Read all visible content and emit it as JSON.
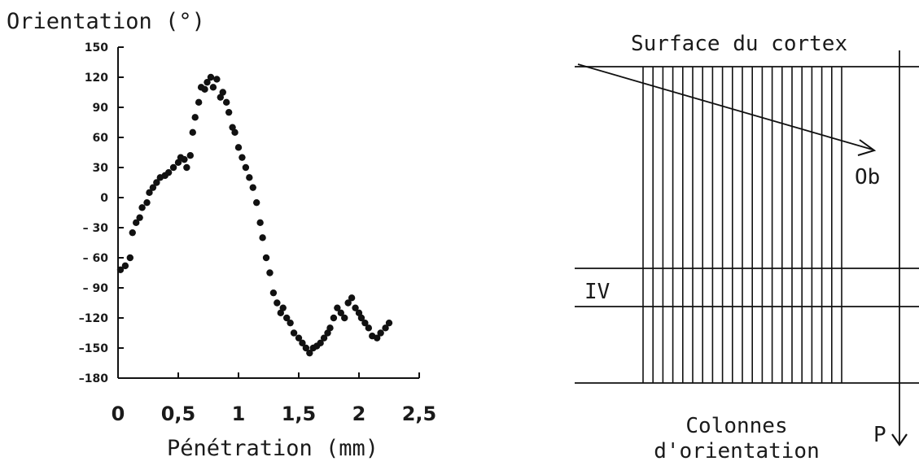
{
  "chart_data": {
    "type": "scatter",
    "ylabel": "Orientation (°)",
    "xlabel": "Pénétration (mm)",
    "xlim": [
      0,
      2.5
    ],
    "ylim": [
      -180,
      150
    ],
    "x_ticks": [
      0,
      0.5,
      1,
      1.5,
      2,
      2.5
    ],
    "x_tick_labels": [
      "0",
      "0,5",
      "1",
      "1,5",
      "2",
      "2,5"
    ],
    "y_ticks": [
      150,
      120,
      90,
      60,
      30,
      0,
      -30,
      -60,
      -90,
      -120,
      -150,
      -180
    ],
    "y_tick_labels": [
      "150",
      "120",
      "90",
      "60",
      "30",
      "0",
      "– 30",
      "– 60",
      "– 90",
      "–120",
      "–150",
      "–180"
    ],
    "grid": false,
    "marker_color": "#111111",
    "series": [
      {
        "x": [
          0.02,
          0.06,
          0.1,
          0.12,
          0.15,
          0.18,
          0.2,
          0.24,
          0.26,
          0.29,
          0.32,
          0.35,
          0.39,
          0.42,
          0.46,
          0.5,
          0.52,
          0.55,
          0.57,
          0.6,
          0.62,
          0.64,
          0.67,
          0.69,
          0.72,
          0.74,
          0.77,
          0.79,
          0.82,
          0.85,
          0.87,
          0.9,
          0.92,
          0.95,
          0.97,
          1.0,
          1.03,
          1.06,
          1.09,
          1.12,
          1.15,
          1.18,
          1.2,
          1.23,
          1.26,
          1.29,
          1.32,
          1.35,
          1.37,
          1.4,
          1.43,
          1.46,
          1.5,
          1.53,
          1.56,
          1.59,
          1.62,
          1.65,
          1.68,
          1.71,
          1.74,
          1.76,
          1.79,
          1.82,
          1.85,
          1.88,
          1.91,
          1.94,
          1.97,
          2.0,
          2.02,
          2.05,
          2.08,
          2.11,
          2.15,
          2.18,
          2.22,
          2.25
        ],
        "y": [
          -72,
          -68,
          -60,
          -35,
          -25,
          -20,
          -10,
          -5,
          5,
          10,
          15,
          20,
          22,
          25,
          30,
          35,
          40,
          38,
          30,
          42,
          65,
          80,
          95,
          110,
          108,
          115,
          120,
          110,
          118,
          100,
          105,
          95,
          85,
          70,
          65,
          50,
          40,
          30,
          20,
          10,
          -5,
          -25,
          -40,
          -60,
          -75,
          -95,
          -105,
          -115,
          -110,
          -120,
          -125,
          -135,
          -140,
          -145,
          -150,
          -155,
          -150,
          -148,
          -145,
          -140,
          -135,
          -130,
          -120,
          -110,
          -115,
          -120,
          -105,
          -100,
          -110,
          -115,
          -120,
          -125,
          -130,
          -138,
          -140,
          -135,
          -130,
          -125
        ]
      }
    ]
  },
  "diagram": {
    "surface_label": "Surface du cortex",
    "probe_label": "Ob",
    "layer_label": "IV",
    "depth_label": "P",
    "columns_label_line1": "Colonnes",
    "columns_label_line2": "d'orientation"
  }
}
